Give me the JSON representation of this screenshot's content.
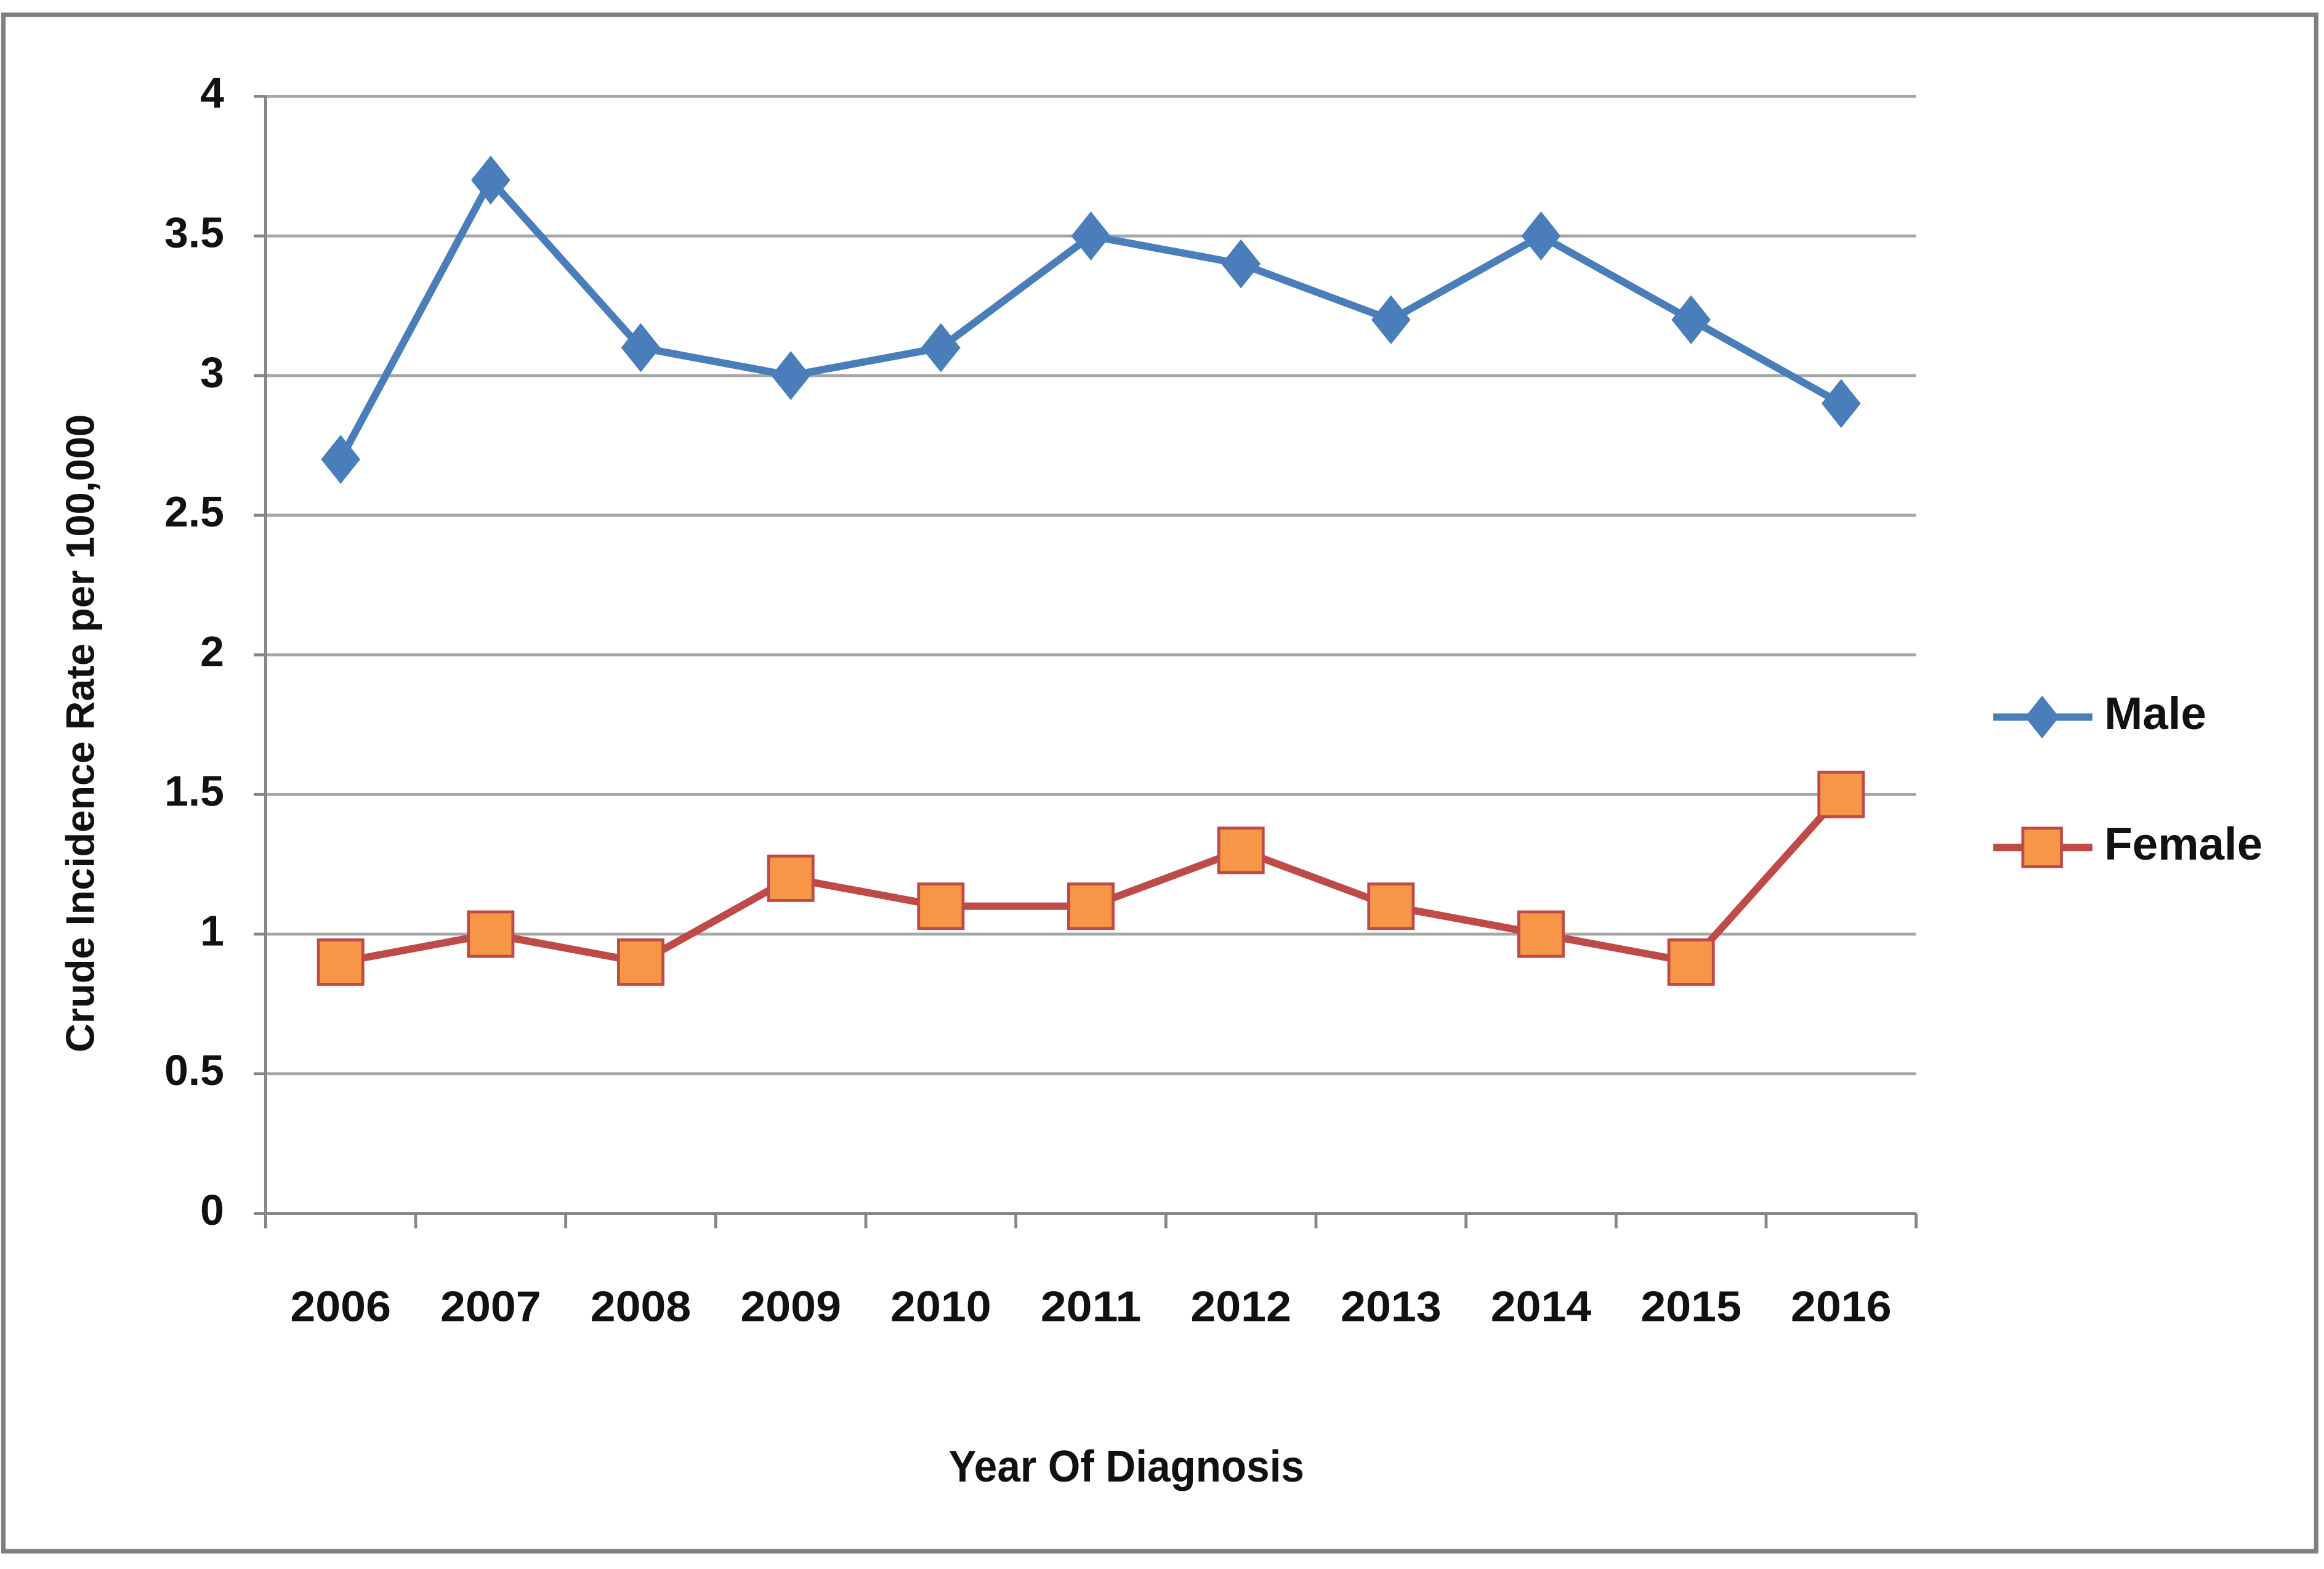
{
  "chart_data": {
    "type": "line",
    "x_label": "Year Of Diagnosis",
    "y_label": "Crude Incidence Rate per 100,000",
    "categories": [
      "2006",
      "2007",
      "2008",
      "2009",
      "2010",
      "2011",
      "2012",
      "2013",
      "2014",
      "2015",
      "2016"
    ],
    "series": [
      {
        "name": "Male",
        "color": "#4a7ebb",
        "marker": "diamond",
        "marker_color": "#4a7ebb",
        "values": [
          2.7,
          3.7,
          3.1,
          3.0,
          3.1,
          3.5,
          3.4,
          3.2,
          3.5,
          3.2,
          2.9
        ]
      },
      {
        "name": "Female",
        "color": "#be4b48",
        "marker": "square",
        "marker_color": "#f79646",
        "values": [
          0.9,
          1.0,
          0.9,
          1.2,
          1.1,
          1.1,
          1.3,
          1.1,
          1.0,
          0.9,
          1.5
        ]
      }
    ],
    "ylim": [
      0,
      4
    ],
    "yticks": [
      0,
      0.5,
      1,
      1.5,
      2,
      2.5,
      3,
      3.5,
      4
    ],
    "grid": true,
    "legend": "right"
  }
}
